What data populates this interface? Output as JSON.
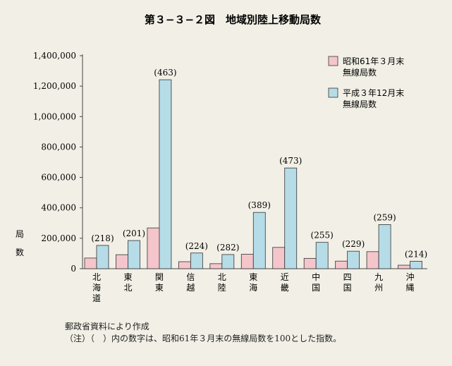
{
  "chart_data": {
    "type": "bar",
    "title": "第３−３−２図　地域別陸上移動局数",
    "ylabel": "局数",
    "xlabel": "",
    "ylim": [
      0,
      1400000
    ],
    "yticks": [
      "0",
      "200,000",
      "400,000",
      "600,000",
      "800,000",
      "1,000,000",
      "1,200,000",
      "1,400,000"
    ],
    "categories": [
      "北海道",
      "東北",
      "関東",
      "信越",
      "北陸",
      "東海",
      "近畿",
      "中国",
      "四国",
      "九州",
      "沖縄"
    ],
    "series": [
      {
        "name": "昭和61年３月末無線局数",
        "color": "#f4c6cc",
        "values": [
          70000,
          92000,
          268000,
          46000,
          33000,
          95000,
          140000,
          68000,
          50000,
          112000,
          23000
        ]
      },
      {
        "name": "平成３年12月末無線局数",
        "color": "#b6dce7",
        "values": [
          153000,
          185000,
          1242000,
          103000,
          93000,
          370000,
          662000,
          173000,
          115000,
          290000,
          49000
        ]
      }
    ],
    "data_labels": [
      "(218)",
      "(201)",
      "(463)",
      "(224)",
      "(282)",
      "(389)",
      "(473)",
      "(255)",
      "(229)",
      "(259)",
      "(214)"
    ],
    "legend_position": "top-right",
    "grid": false
  },
  "notes": {
    "source": "郵政省資料により作成",
    "footnote": "（注）（　）内の数字は、昭和61年３月末の無線局数を100とした指数。"
  }
}
